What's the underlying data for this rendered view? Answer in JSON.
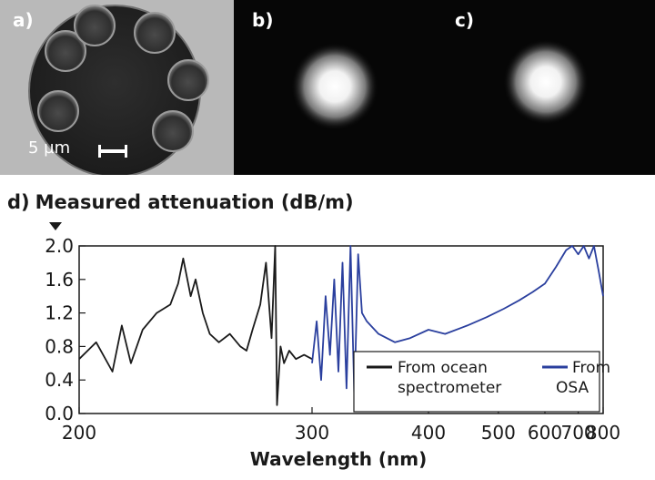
{
  "panels": {
    "a": {
      "letter": "a)",
      "scale_text": "5 µm"
    },
    "b": {
      "letter": "b)"
    },
    "c": {
      "letter": "c)"
    }
  },
  "chart_data": {
    "type": "line",
    "panel_letter": "d)",
    "title": "Measured attenuation (dB/m)",
    "xlabel": "Wavelength (nm)",
    "xlim": [
      200,
      800
    ],
    "ylim": [
      0,
      2.0
    ],
    "x_scale": "reciprocal",
    "x_ticks": [
      200,
      300,
      400,
      500,
      600,
      700,
      800
    ],
    "y_ticks": [
      0.0,
      0.4,
      0.8,
      1.2,
      1.6,
      2.0
    ],
    "y_tick_labels": [
      "0.0",
      "0.4",
      "0.8",
      "1.2",
      "1.6",
      "2.0"
    ],
    "grid": false,
    "legend_position": "bottom-right",
    "series": [
      {
        "name": "From ocean\nspectrometer",
        "color": "#1a1a1a",
        "x": [
          200,
          205,
          210,
          213,
          216,
          220,
          225,
          230,
          233,
          235,
          238,
          240,
          243,
          246,
          250,
          255,
          260,
          263,
          266,
          270,
          273,
          276,
          278,
          279,
          281,
          283,
          286,
          290,
          295,
          300
        ],
        "y": [
          0.65,
          0.85,
          0.5,
          1.05,
          0.6,
          1.0,
          1.2,
          1.3,
          1.55,
          1.85,
          1.4,
          1.6,
          1.2,
          0.95,
          0.85,
          0.95,
          0.8,
          0.75,
          1.0,
          1.3,
          1.8,
          0.9,
          2.0,
          0.1,
          0.8,
          0.6,
          0.75,
          0.65,
          0.7,
          0.65
        ]
      },
      {
        "name": "From\nOSA",
        "color": "#2a3f9e",
        "x": [
          300,
          303,
          306,
          309,
          312,
          315,
          318,
          321,
          324,
          327,
          330,
          333,
          336,
          340,
          350,
          365,
          380,
          400,
          420,
          450,
          480,
          510,
          540,
          570,
          600,
          630,
          660,
          680,
          700,
          720,
          740,
          760,
          780,
          800
        ],
        "y": [
          0.6,
          1.1,
          0.4,
          1.4,
          0.7,
          1.6,
          0.5,
          1.8,
          0.3,
          2.0,
          0.2,
          1.9,
          1.2,
          1.1,
          0.95,
          0.85,
          0.9,
          1.0,
          0.95,
          1.05,
          1.15,
          1.25,
          1.35,
          1.45,
          1.55,
          1.75,
          1.95,
          2.0,
          1.9,
          2.0,
          1.85,
          2.0,
          1.7,
          1.4
        ]
      }
    ]
  }
}
